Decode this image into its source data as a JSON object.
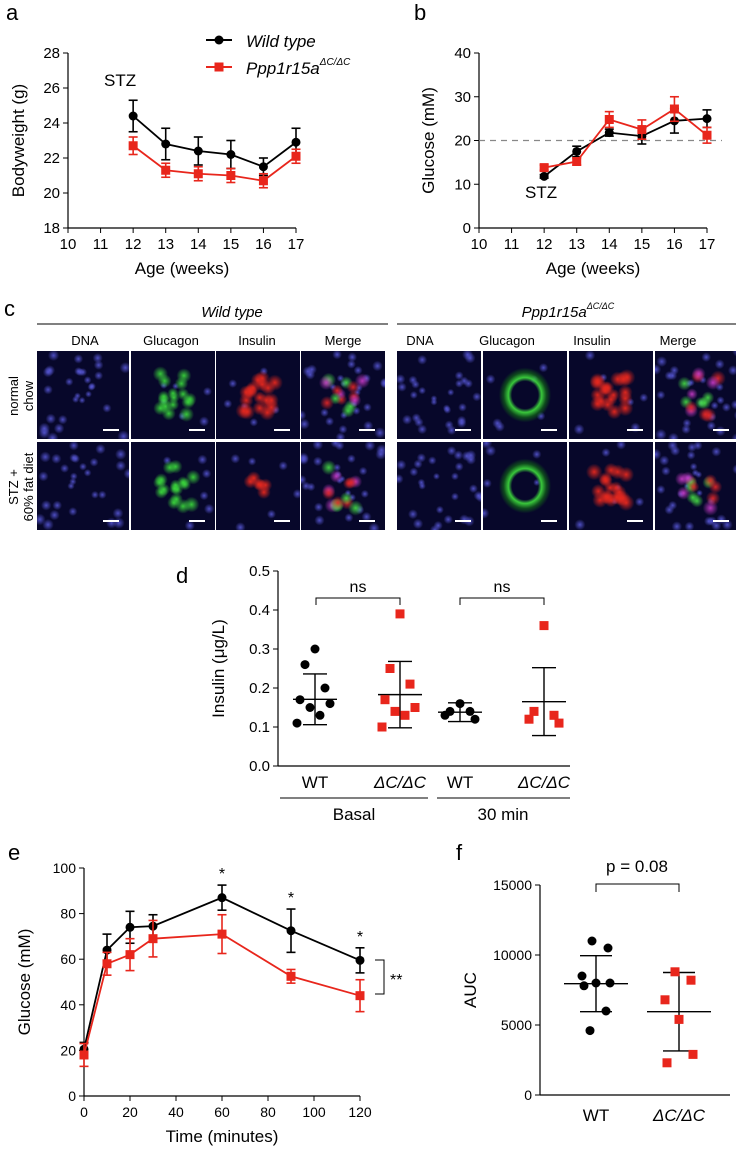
{
  "colors": {
    "wt": "#000000",
    "mut": "#e8261c",
    "threshold_line": "#888888",
    "micro_bg": "#07072a"
  },
  "panels": {
    "a": {
      "label": "a",
      "annotation": "STZ",
      "legend": {
        "wt": "Wild type",
        "mut_base": "Ppp1r15a",
        "mut_sup": "ΔC/ΔC"
      }
    },
    "b": {
      "label": "b",
      "annotation": "STZ"
    },
    "c": {
      "label": "c",
      "groups": [
        {
          "title": "Wild type",
          "title_sup": ""
        },
        {
          "title": "Ppp1r15a",
          "title_sup": "ΔC/ΔC"
        }
      ],
      "columns": [
        "DNA",
        "Glucagon",
        "Insulin",
        "Merge"
      ],
      "rows": [
        {
          "line1": "normal",
          "line2": "chow"
        },
        {
          "line1": "STZ +",
          "line2": "60% fat diet"
        }
      ],
      "tiles": [
        [
          "blue-nuclei",
          "green-islet",
          "red-islet",
          "merge-islet",
          "blue-nuclei",
          "green-ring",
          "red-islet",
          "merge-islet"
        ],
        [
          "blue-nuclei",
          "green-islet",
          "red-sparse",
          "merge-islet",
          "blue-nuclei",
          "green-ring",
          "red-islet",
          "merge-islet"
        ]
      ]
    },
    "d": {
      "label": "d",
      "group_labels": [
        "Basal",
        "30 min"
      ],
      "sig": [
        "ns",
        "ns"
      ]
    },
    "e": {
      "label": "e",
      "stars": [
        "*",
        "*",
        "*"
      ],
      "bracket": "**"
    },
    "f": {
      "label": "f",
      "pvalue": "p = 0.08"
    }
  },
  "chart_data": [
    {
      "id": "a",
      "type": "line",
      "title": "",
      "xlabel": "Age (weeks)",
      "ylabel": "Bodyweight (g)",
      "xlim": [
        10,
        17
      ],
      "ylim": [
        18,
        28
      ],
      "xticks": [
        10,
        11,
        12,
        13,
        14,
        15,
        16,
        17
      ],
      "yticks": [
        18,
        20,
        22,
        24,
        26,
        28
      ],
      "x": [
        12,
        13,
        14,
        15,
        16,
        17
      ],
      "series": [
        {
          "name": "Wild type",
          "values": [
            24.4,
            22.8,
            22.4,
            22.2,
            21.5,
            22.9
          ],
          "err": [
            0.9,
            0.9,
            0.8,
            0.8,
            0.5,
            0.8
          ],
          "marker": "circle"
        },
        {
          "name": "Ppp1r15a ΔC/ΔC",
          "values": [
            22.7,
            21.3,
            21.1,
            21.0,
            20.7,
            22.1
          ],
          "err": [
            0.5,
            0.4,
            0.4,
            0.4,
            0.4,
            0.4
          ],
          "marker": "square"
        }
      ]
    },
    {
      "id": "b",
      "type": "line",
      "title": "",
      "xlabel": "Age (weeks)",
      "ylabel": "Glucose (mM)",
      "xlim": [
        10,
        17
      ],
      "ylim": [
        0,
        40
      ],
      "xticks": [
        10,
        11,
        12,
        13,
        14,
        15,
        16,
        17
      ],
      "yticks": [
        0,
        10,
        20,
        30,
        40
      ],
      "reference_line": 20,
      "x": [
        12,
        13,
        14,
        15,
        16,
        17
      ],
      "series": [
        {
          "name": "Wild type",
          "values": [
            11.8,
            17.5,
            21.8,
            21.0,
            24.5,
            25.0
          ],
          "err": [
            0.4,
            1.2,
            0.8,
            1.8,
            2.8,
            2.0
          ],
          "marker": "circle"
        },
        {
          "name": "Ppp1r15a ΔC/ΔC",
          "values": [
            13.8,
            15.2,
            24.8,
            22.5,
            27.2,
            21.2
          ],
          "err": [
            0.6,
            0.8,
            1.8,
            2.2,
            2.8,
            1.8
          ],
          "marker": "square"
        }
      ]
    },
    {
      "id": "d",
      "type": "scatter",
      "title": "",
      "xlabel": "",
      "ylabel": "Insulin (μg/L)",
      "ylim": [
        0,
        0.5
      ],
      "yticks": [
        0.0,
        0.1,
        0.2,
        0.3,
        0.4,
        0.5
      ],
      "categories": [
        "WT",
        "ΔC/ΔC",
        "WT",
        "ΔC/ΔC"
      ],
      "groups": [
        {
          "category": "WT",
          "group": "Basal",
          "marker": "circle",
          "mean": 0.171,
          "sd": 0.065,
          "points": [
            0.3,
            0.26,
            0.2,
            0.17,
            0.16,
            0.15,
            0.13,
            0.11
          ]
        },
        {
          "category": "ΔC/ΔC",
          "group": "Basal",
          "marker": "square",
          "mean": 0.183,
          "sd": 0.085,
          "points": [
            0.39,
            0.25,
            0.21,
            0.17,
            0.15,
            0.14,
            0.13,
            0.1
          ]
        },
        {
          "category": "WT",
          "group": "30 min",
          "marker": "circle",
          "mean": 0.138,
          "sd": 0.024,
          "points": [
            0.16,
            0.14,
            0.14,
            0.13,
            0.12
          ]
        },
        {
          "category": "ΔC/ΔC",
          "group": "30 min",
          "marker": "square",
          "mean": 0.165,
          "sd": 0.087,
          "points": [
            0.36,
            0.14,
            0.13,
            0.12,
            0.11
          ]
        }
      ]
    },
    {
      "id": "e",
      "type": "line",
      "title": "",
      "xlabel": "Time (minutes)",
      "ylabel": "Glucose (mM)",
      "xlim": [
        0,
        120
      ],
      "ylim": [
        0,
        100
      ],
      "xticks": [
        0,
        20,
        40,
        60,
        80,
        100,
        120
      ],
      "yticks": [
        0,
        20,
        40,
        60,
        80,
        100
      ],
      "x": [
        0,
        10,
        20,
        30,
        60,
        90,
        120
      ],
      "series": [
        {
          "name": "Wild type",
          "values": [
            20.5,
            64.0,
            74.0,
            74.5,
            87.0,
            72.5,
            59.5
          ],
          "err": [
            3.0,
            7.0,
            7.0,
            5.0,
            5.5,
            9.5,
            5.5
          ],
          "marker": "circle"
        },
        {
          "name": "Ppp1r15a ΔC/ΔC",
          "values": [
            18.0,
            58.0,
            62.0,
            69.0,
            71.0,
            52.5,
            44.0
          ],
          "err": [
            5.0,
            5.0,
            7.0,
            8.0,
            8.5,
            3.0,
            7.0
          ],
          "marker": "square"
        }
      ],
      "star_x": [
        60,
        90,
        120
      ]
    },
    {
      "id": "f",
      "type": "scatter",
      "title": "",
      "xlabel": "",
      "ylabel": "AUC",
      "ylim": [
        0,
        15000
      ],
      "yticks": [
        0,
        5000,
        10000,
        15000
      ],
      "categories": [
        "WT",
        "ΔC/ΔC"
      ],
      "groups": [
        {
          "category": "WT",
          "marker": "circle",
          "mean": 7950,
          "sd": 2000,
          "points": [
            11000,
            10500,
            8500,
            8000,
            8000,
            7800,
            6000,
            4600
          ]
        },
        {
          "category": "ΔC/ΔC",
          "marker": "square",
          "mean": 5950,
          "sd": 2800,
          "points": [
            8800,
            8200,
            6800,
            5400,
            2900,
            2300
          ]
        }
      ]
    }
  ]
}
